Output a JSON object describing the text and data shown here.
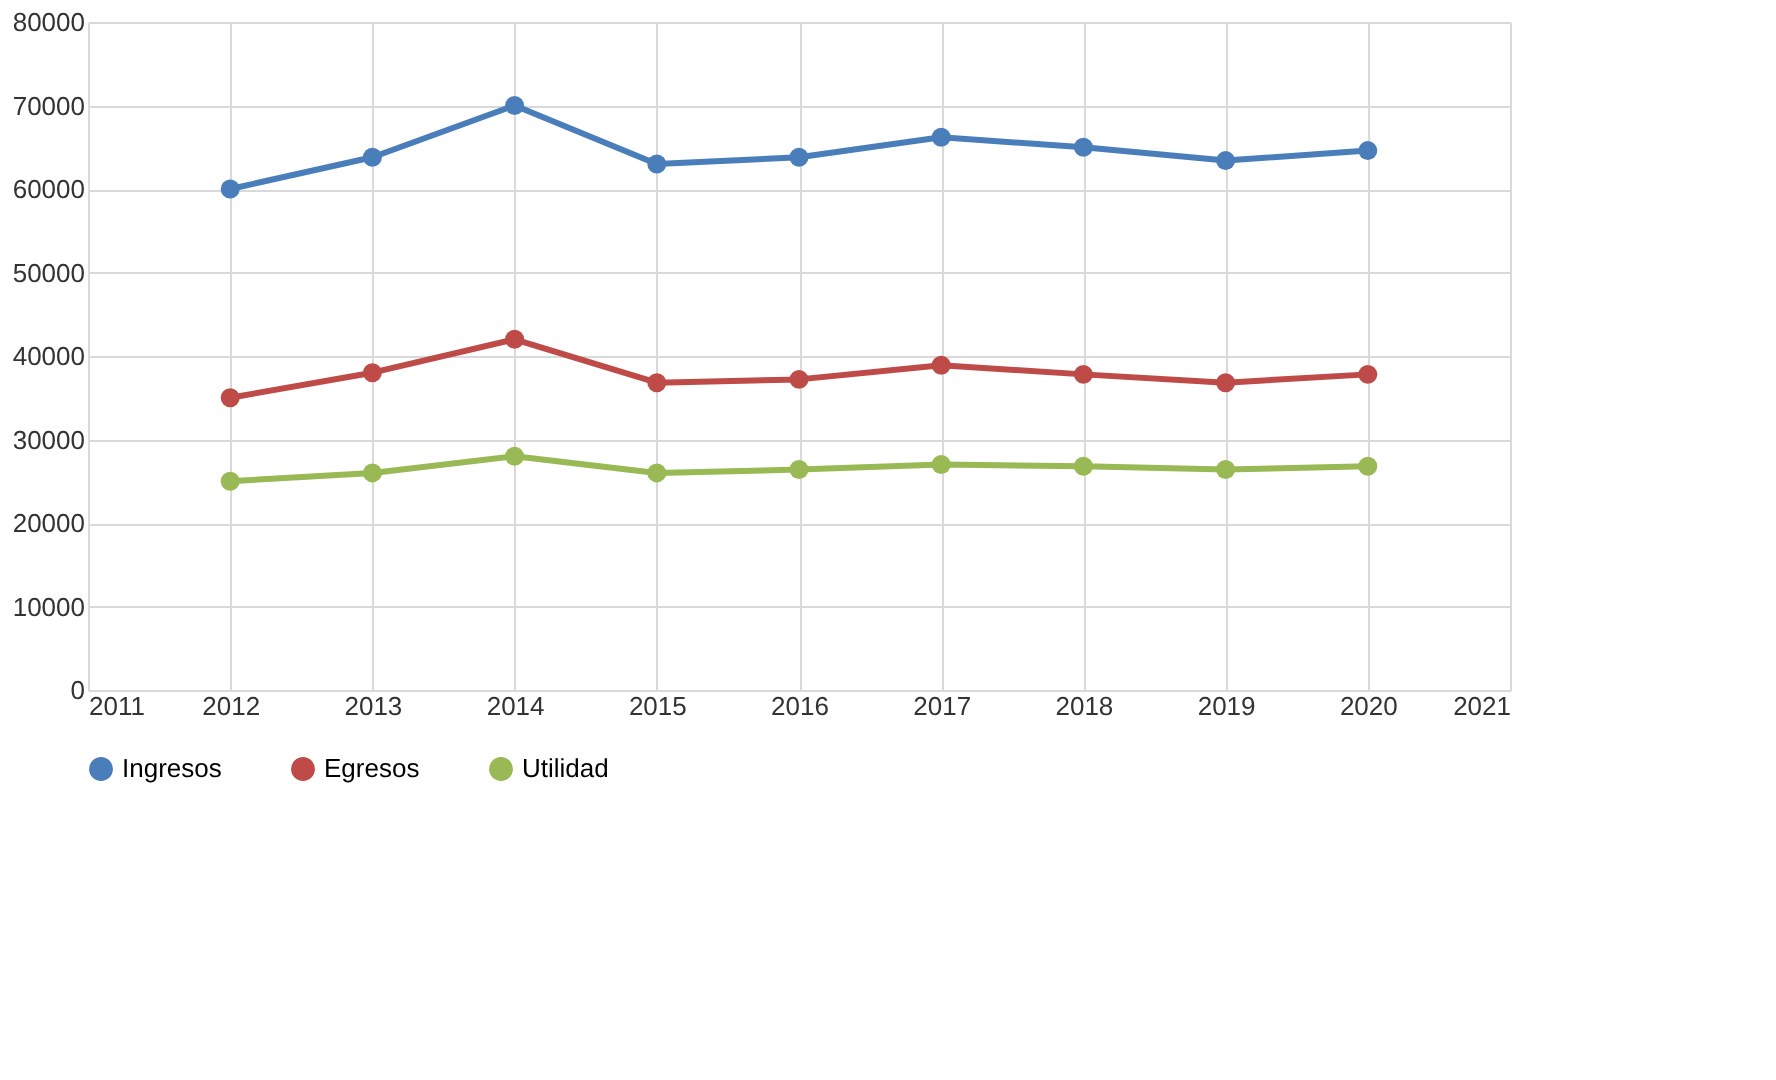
{
  "chart_data": {
    "type": "line",
    "x": [
      2012,
      2013,
      2014,
      2015,
      2016,
      2017,
      2018,
      2019,
      2020
    ],
    "series": [
      {
        "name": "Ingresos",
        "color": "#4a7ebb",
        "values": [
          60000,
          63800,
          70000,
          63000,
          63800,
          66200,
          65000,
          63400,
          64600
        ]
      },
      {
        "name": "Egresos",
        "color": "#be4b48",
        "values": [
          35000,
          38000,
          42000,
          36800,
          37200,
          38900,
          37800,
          36800,
          37800
        ]
      },
      {
        "name": "Utilidad",
        "color": "#98b954",
        "values": [
          25000,
          26000,
          28000,
          26000,
          26400,
          27000,
          26800,
          26400,
          26800
        ]
      }
    ],
    "xlim": [
      2011,
      2021
    ],
    "xticks": [
      2011,
      2012,
      2013,
      2014,
      2015,
      2016,
      2017,
      2018,
      2019,
      2020,
      2021
    ],
    "ylim": [
      0,
      80000
    ],
    "yticks": [
      0,
      10000,
      20000,
      30000,
      40000,
      50000,
      60000,
      70000,
      80000
    ],
    "grid": true,
    "legend": "bottom",
    "marker": "circle",
    "line_style": "solid"
  }
}
